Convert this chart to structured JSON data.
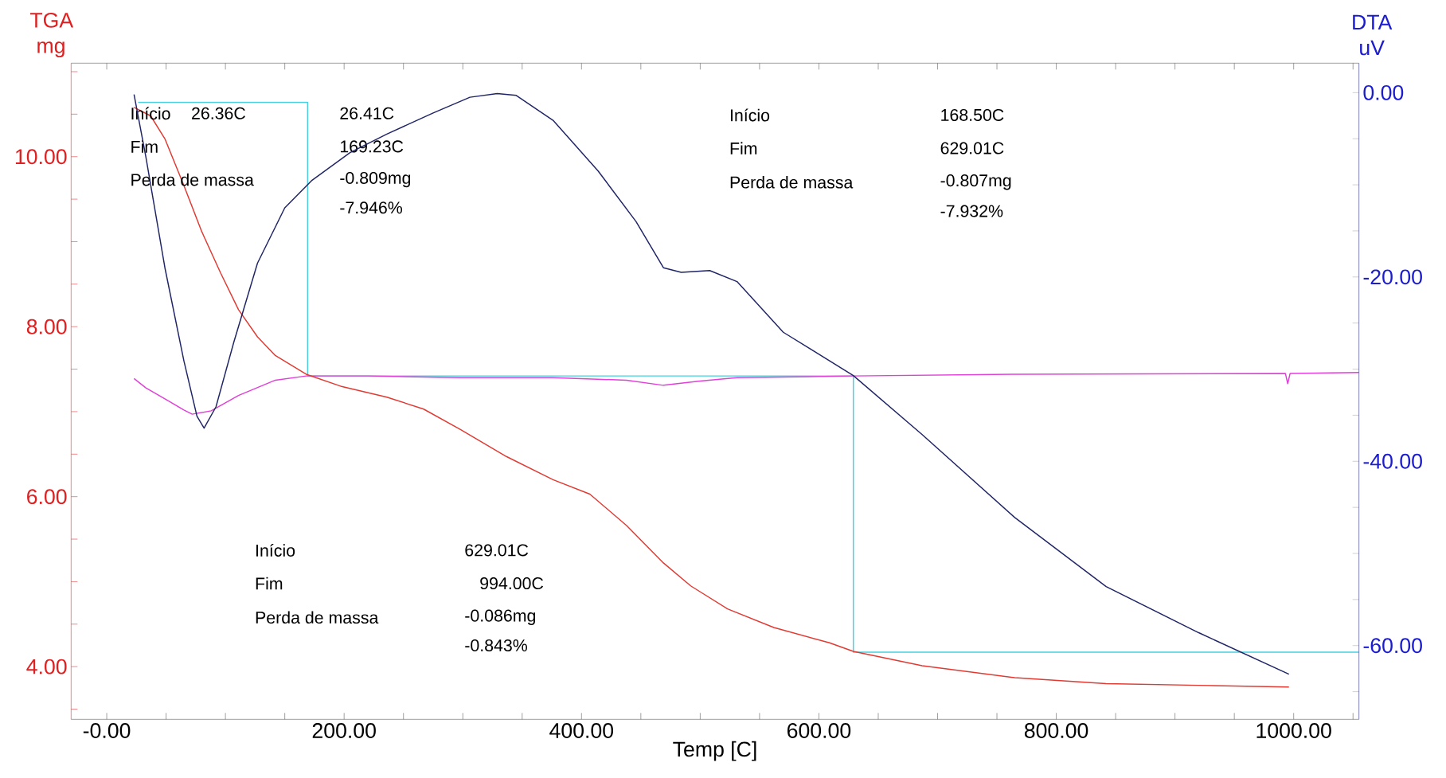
{
  "chart_data": {
    "type": "line",
    "xlabel": "Temp  [C]",
    "ylabel": "TGA mg",
    "y2label": "DTA uV",
    "xlim": [
      -30,
      1055
    ],
    "ylim": [
      3.38,
      11.1
    ],
    "y2lim": [
      -68,
      3.2
    ],
    "xticks": [
      {
        "value": 0,
        "label": "-0.00"
      },
      {
        "value": 50,
        "label": null
      },
      {
        "value": 100,
        "label": null
      },
      {
        "value": 150,
        "label": null
      },
      {
        "value": 200,
        "label": "200.00"
      },
      {
        "value": 250,
        "label": null
      },
      {
        "value": 300,
        "label": null
      },
      {
        "value": 350,
        "label": null
      },
      {
        "value": 400,
        "label": "400.00"
      },
      {
        "value": 450,
        "label": null
      },
      {
        "value": 500,
        "label": null
      },
      {
        "value": 550,
        "label": null
      },
      {
        "value": 600,
        "label": "600.00"
      },
      {
        "value": 650,
        "label": null
      },
      {
        "value": 700,
        "label": null
      },
      {
        "value": 750,
        "label": null
      },
      {
        "value": 800,
        "label": "800.00"
      },
      {
        "value": 850,
        "label": null
      },
      {
        "value": 900,
        "label": null
      },
      {
        "value": 950,
        "label": null
      },
      {
        "value": 1000,
        "label": "1000.00"
      },
      {
        "value": 1050,
        "label": null
      }
    ],
    "yticks": [
      {
        "value": 3.5,
        "label": null
      },
      {
        "value": 4,
        "label": "4.00"
      },
      {
        "value": 4.5,
        "label": null
      },
      {
        "value": 5,
        "label": null
      },
      {
        "value": 5.5,
        "label": null
      },
      {
        "value": 6,
        "label": "6.00"
      },
      {
        "value": 6.5,
        "label": null
      },
      {
        "value": 7,
        "label": null
      },
      {
        "value": 7.5,
        "label": null
      },
      {
        "value": 8,
        "label": "8.00"
      },
      {
        "value": 8.5,
        "label": null
      },
      {
        "value": 9,
        "label": null
      },
      {
        "value": 9.5,
        "label": null
      },
      {
        "value": 10,
        "label": "10.00"
      },
      {
        "value": 10.5,
        "label": null
      },
      {
        "value": 11,
        "label": null
      }
    ],
    "y2ticks": [
      {
        "value": -65,
        "label": null
      },
      {
        "value": -60,
        "label": "-60.00"
      },
      {
        "value": -55,
        "label": null
      },
      {
        "value": -50,
        "label": null
      },
      {
        "value": -45,
        "label": null
      },
      {
        "value": -40,
        "label": "-40.00"
      },
      {
        "value": -35,
        "label": null
      },
      {
        "value": -30,
        "label": null
      },
      {
        "value": -25,
        "label": null
      },
      {
        "value": -20,
        "label": "-20.00"
      },
      {
        "value": -15,
        "label": null
      },
      {
        "value": -10,
        "label": null
      },
      {
        "value": -5,
        "label": null
      },
      {
        "value": 0,
        "label": "0.00"
      }
    ],
    "series": [
      {
        "color": "#e03a32",
        "x": [
          23,
          37,
          49,
          65,
          80,
          96,
          111,
          127,
          142,
          168,
          197,
          236,
          267,
          298,
          337,
          376,
          407,
          438,
          469,
          492,
          523,
          562,
          609,
          629,
          687,
          765,
          842,
          920,
          996
        ],
        "values": [
          10.58,
          10.48,
          10.21,
          9.66,
          9.12,
          8.63,
          8.2,
          7.88,
          7.66,
          7.44,
          7.3,
          7.17,
          7.03,
          6.79,
          6.47,
          6.2,
          6.03,
          5.66,
          5.22,
          4.95,
          4.68,
          4.46,
          4.28,
          4.18,
          4.01,
          3.87,
          3.8,
          3.78,
          3.76
        ]
      },
      {
        "color": "#1f2466",
        "axis": "y2",
        "x": [
          23,
          33,
          49,
          65,
          76,
          82,
          92,
          107,
          127,
          150,
          173,
          205,
          236,
          275,
          306,
          329,
          345,
          376,
          414,
          446,
          469,
          484,
          508,
          531,
          570,
          629,
          687,
          765,
          842,
          920,
          996
        ],
        "values": [
          -0.2,
          -7,
          -19,
          -29.1,
          -35.1,
          -36.4,
          -34.1,
          -27.1,
          -18.5,
          -12.5,
          -9.5,
          -6.5,
          -4.5,
          -2.2,
          -0.5,
          -0.1,
          -0.3,
          -3,
          -8.5,
          -14,
          -19,
          -19.5,
          -19.3,
          -20.5,
          -26,
          -30.7,
          -37.1,
          -46.1,
          -53.6,
          -58.6,
          -63.1
        ]
      },
      {
        "color": "#e040d8",
        "x": [
          23,
          33,
          49,
          65,
          72,
          88,
          111,
          142,
          168,
          220,
          298,
          376,
          438,
          469,
          500,
          531,
          629,
          765,
          993,
          995,
          997,
          1055
        ],
        "values": [
          7.39,
          7.28,
          7.15,
          7.02,
          6.97,
          7.01,
          7.19,
          7.37,
          7.42,
          7.42,
          7.4,
          7.4,
          7.37,
          7.31,
          7.36,
          7.4,
          7.42,
          7.44,
          7.45,
          7.33,
          7.45,
          7.46
        ]
      },
      {
        "color": "#48d0e0",
        "x": [
          26.41,
          169.23,
          169.23,
          629.01,
          629.01,
          1055
        ],
        "values": [
          10.64,
          10.64,
          7.42,
          7.42,
          4.17,
          4.17
        ]
      }
    ],
    "annotations": [
      "Início",
      "26.36C",
      "26.41C",
      "Fim",
      "169.23C",
      "Perda de massa",
      "-0.809mg",
      "-7.946%",
      "Início",
      "168.50C",
      "Fim",
      "629.01C",
      "Perda de massa",
      "-0.807mg",
      "-7.932%",
      "Início",
      "629.01C",
      "Fim",
      "994.00C",
      "Perda de massa",
      "-0.086mg",
      "-0.843%"
    ]
  }
}
